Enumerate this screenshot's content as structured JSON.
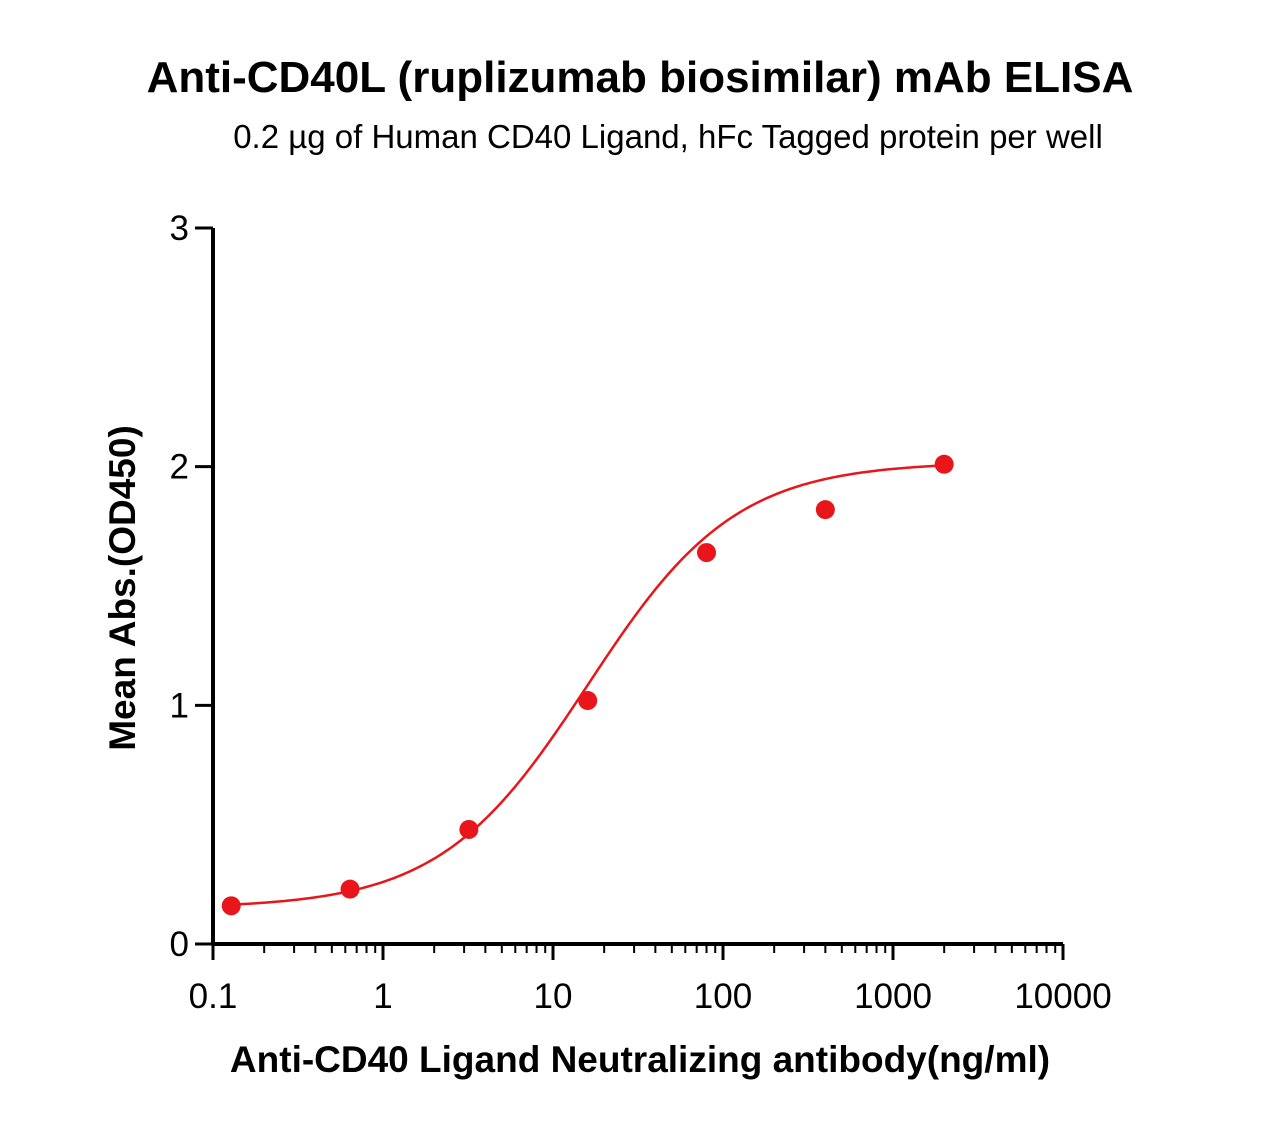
{
  "chart_data": {
    "type": "scatter",
    "title": "Anti-CD40L (ruplizumab biosimilar) mAb ELISA",
    "subtitle": "0.2 µg of Human CD40 Ligand, hFc Tagged protein per well",
    "xlabel": "Anti-CD40 Ligand Neutralizing antibody(ng/ml)",
    "ylabel": "Mean Abs.(OD450)",
    "x_scale": "log10",
    "xlim": [
      0.1,
      10000
    ],
    "ylim": [
      0,
      3
    ],
    "x_ticks": [
      0.1,
      1,
      10,
      100,
      1000,
      10000
    ],
    "x_tick_labels": [
      "0.1",
      "1",
      "10",
      "100",
      "1000",
      "10000"
    ],
    "y_ticks": [
      0,
      1,
      2,
      3
    ],
    "y_tick_labels": [
      "0",
      "1",
      "2",
      "3"
    ],
    "grid": false,
    "legend": "none",
    "series": [
      {
        "color": "#e8161b",
        "x": [
          0.128,
          0.64,
          3.2,
          16,
          80,
          400,
          2000
        ],
        "y": [
          0.16,
          0.23,
          0.48,
          1.02,
          1.64,
          1.82,
          2.01
        ]
      }
    ],
    "fit_curve": {
      "type": "4PL",
      "color": "#e8161b",
      "bottom": 0.15,
      "top": 2.02,
      "ec50": 16,
      "hill": 1.0,
      "x_range": [
        0.128,
        2000
      ]
    }
  }
}
